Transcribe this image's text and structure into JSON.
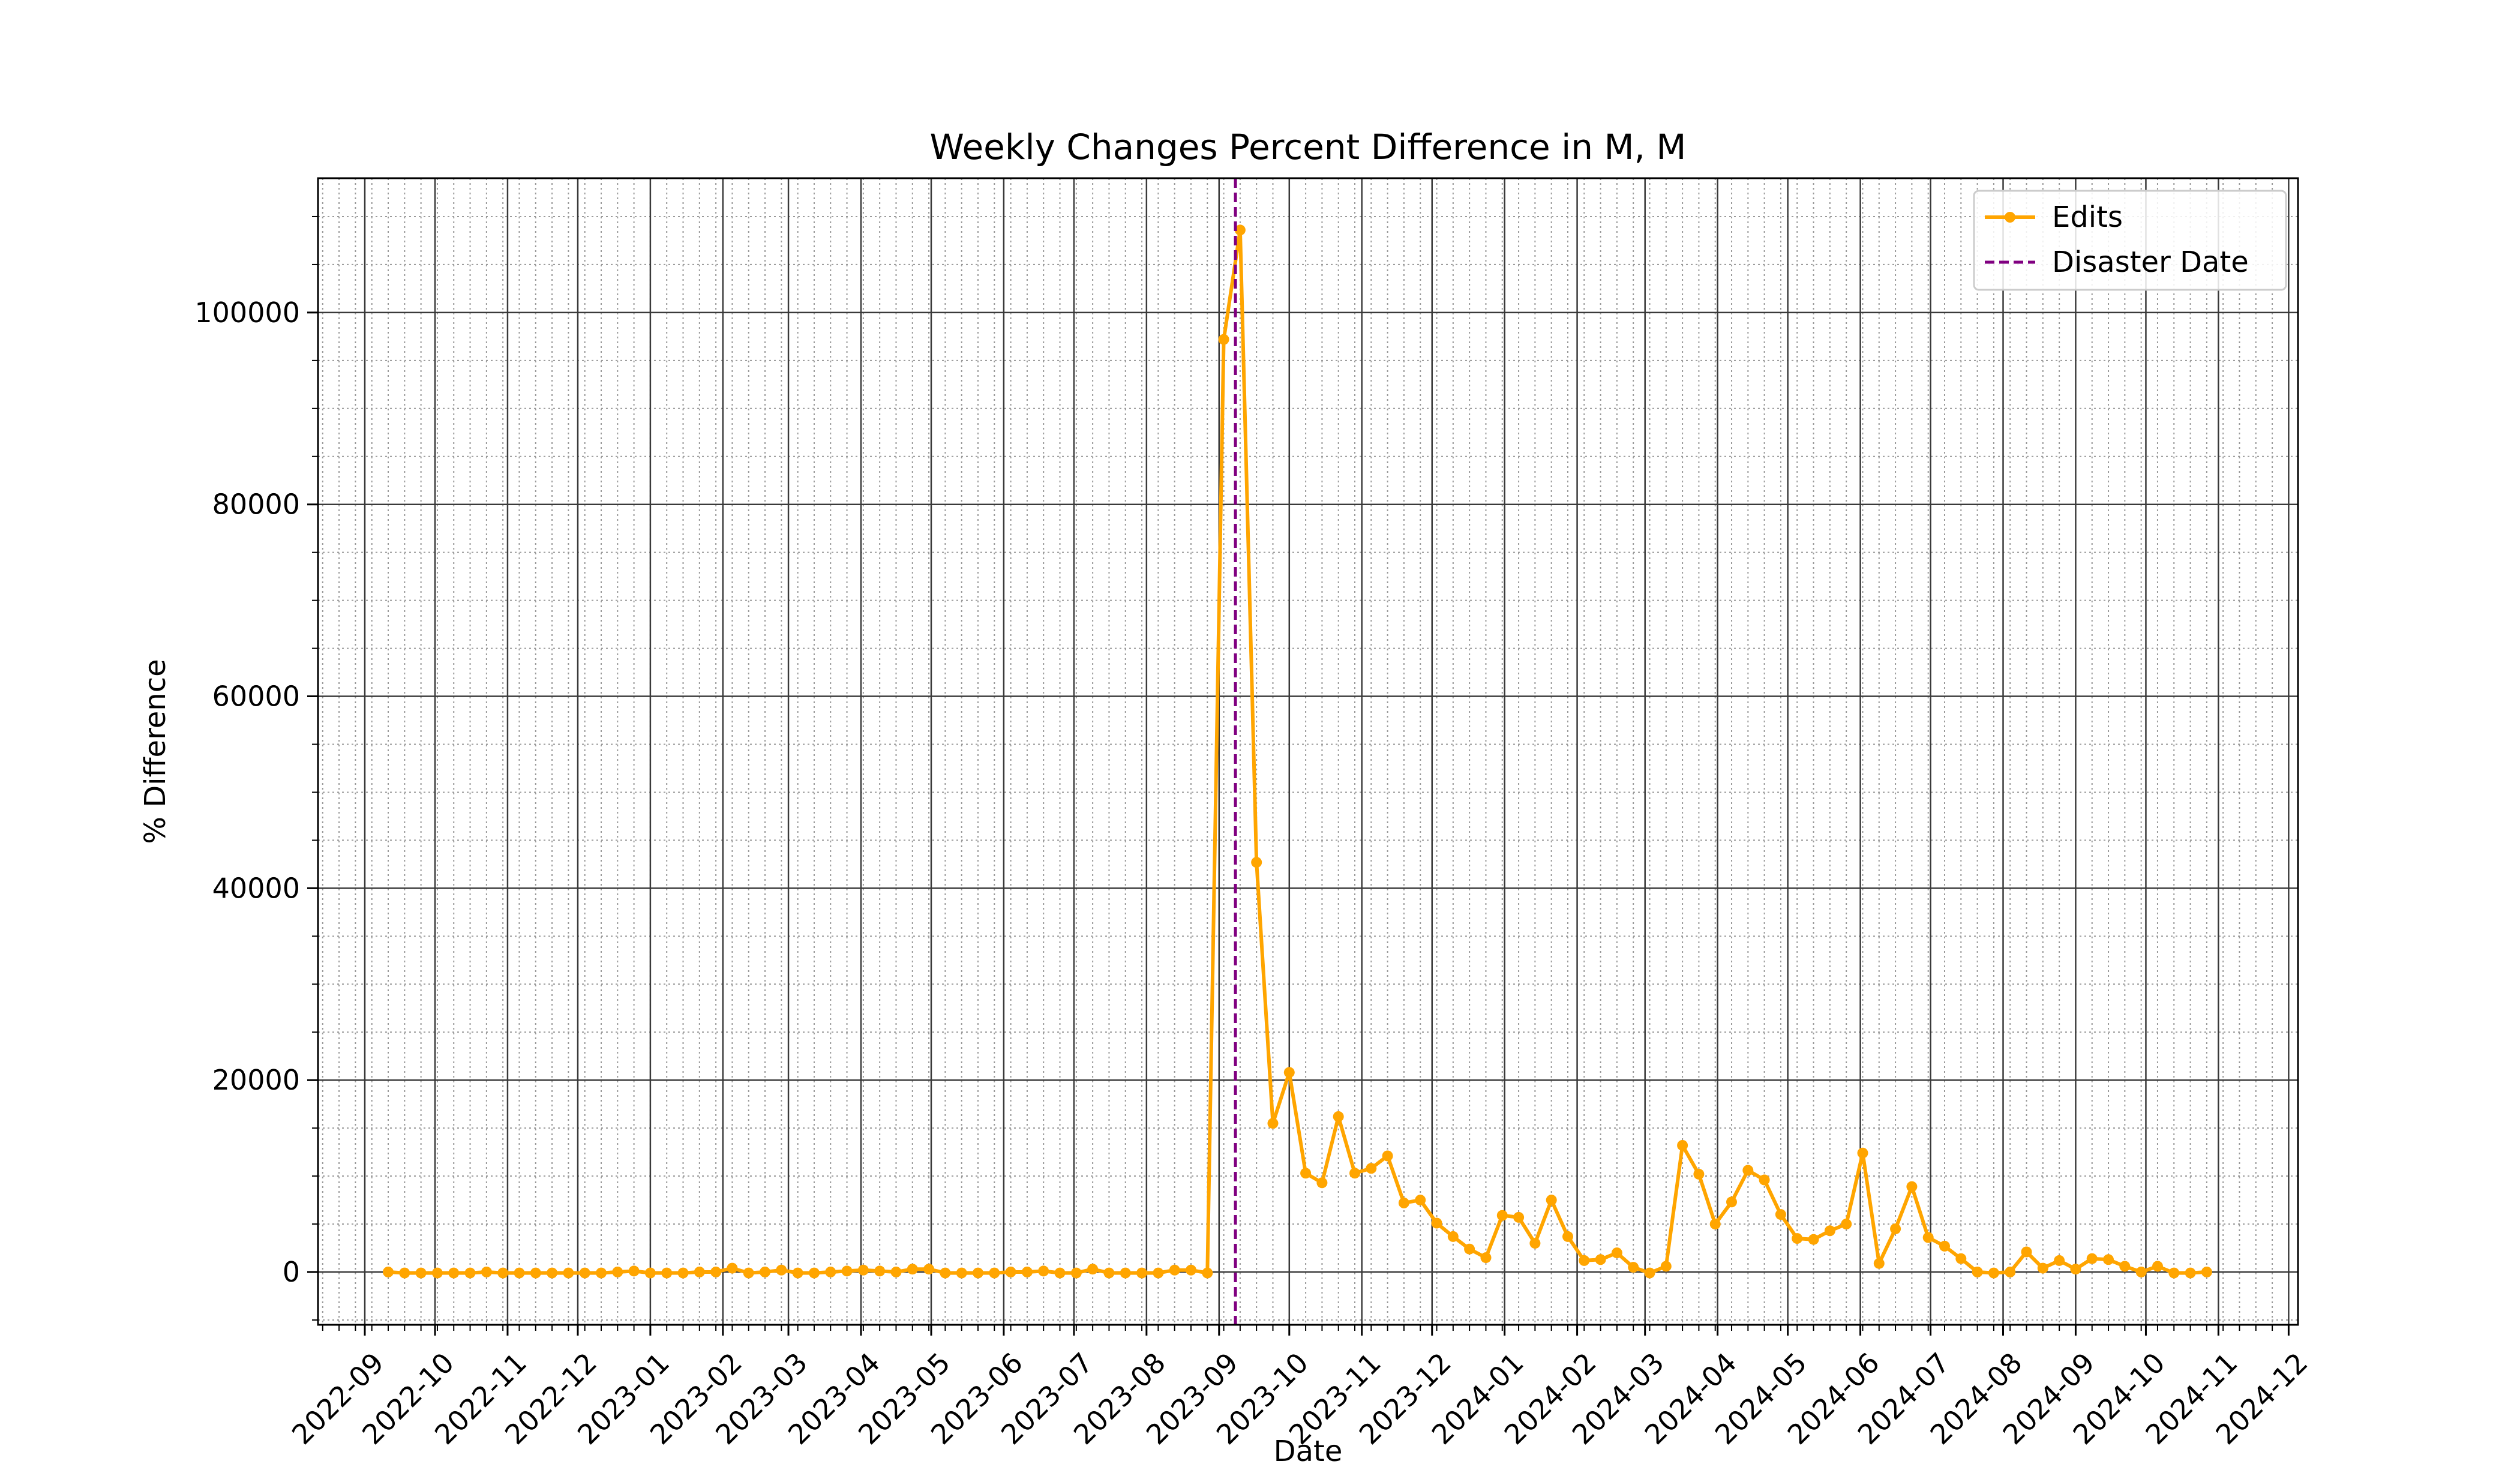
{
  "chart_data": {
    "type": "line",
    "title": "Weekly Changes Percent Difference in M, M",
    "xlabel": "Date",
    "ylabel": "% Difference",
    "ylim": [
      -5500,
      114000
    ],
    "xlim": [
      "2022-08-12",
      "2024-12-05"
    ],
    "yticks": [
      0,
      20000,
      40000,
      60000,
      80000,
      100000
    ],
    "xticks": [
      "2022-09",
      "2022-10",
      "2022-11",
      "2022-12",
      "2023-01",
      "2023-02",
      "2023-03",
      "2023-04",
      "2023-05",
      "2023-06",
      "2023-07",
      "2023-08",
      "2023-09",
      "2023-10",
      "2023-11",
      "2023-12",
      "2024-01",
      "2024-02",
      "2024-03",
      "2024-04",
      "2024-05",
      "2024-06",
      "2024-07",
      "2024-08",
      "2024-09",
      "2024-10",
      "2024-11",
      "2024-12"
    ],
    "grid": "major and minor",
    "legend_position": "top-right",
    "disaster_date": "2023-09-08",
    "series": [
      {
        "name": "Edits",
        "color": "#FFA500",
        "points": [
          [
            "2022-09-11",
            0
          ],
          [
            "2022-09-18",
            -100
          ],
          [
            "2022-09-25",
            -100
          ],
          [
            "2022-10-02",
            -100
          ],
          [
            "2022-10-09",
            -100
          ],
          [
            "2022-10-16",
            -100
          ],
          [
            "2022-10-23",
            0
          ],
          [
            "2022-10-30",
            -100
          ],
          [
            "2022-11-06",
            -100
          ],
          [
            "2022-11-13",
            -100
          ],
          [
            "2022-11-20",
            -100
          ],
          [
            "2022-11-27",
            -100
          ],
          [
            "2022-12-04",
            -100
          ],
          [
            "2022-12-11",
            -100
          ],
          [
            "2022-12-18",
            0
          ],
          [
            "2022-12-25",
            100
          ],
          [
            "2023-01-01",
            -100
          ],
          [
            "2023-01-08",
            -100
          ],
          [
            "2023-01-15",
            -100
          ],
          [
            "2023-01-22",
            0
          ],
          [
            "2023-01-29",
            0
          ],
          [
            "2023-02-05",
            400
          ],
          [
            "2023-02-12",
            -100
          ],
          [
            "2023-02-19",
            0
          ],
          [
            "2023-02-26",
            200
          ],
          [
            "2023-03-05",
            -100
          ],
          [
            "2023-03-12",
            -100
          ],
          [
            "2023-03-19",
            0
          ],
          [
            "2023-03-26",
            100
          ],
          [
            "2023-04-02",
            200
          ],
          [
            "2023-04-09",
            100
          ],
          [
            "2023-04-16",
            0
          ],
          [
            "2023-04-23",
            300
          ],
          [
            "2023-04-30",
            300
          ],
          [
            "2023-05-07",
            -100
          ],
          [
            "2023-05-14",
            -100
          ],
          [
            "2023-05-21",
            -100
          ],
          [
            "2023-05-28",
            -100
          ],
          [
            "2023-06-04",
            0
          ],
          [
            "2023-06-11",
            0
          ],
          [
            "2023-06-18",
            100
          ],
          [
            "2023-06-25",
            -100
          ],
          [
            "2023-07-02",
            -100
          ],
          [
            "2023-07-09",
            300
          ],
          [
            "2023-07-16",
            -100
          ],
          [
            "2023-07-23",
            -100
          ],
          [
            "2023-07-30",
            -100
          ],
          [
            "2023-08-06",
            -100
          ],
          [
            "2023-08-13",
            200
          ],
          [
            "2023-08-20",
            200
          ],
          [
            "2023-08-27",
            -100
          ],
          [
            "2023-09-03",
            97200
          ],
          [
            "2023-09-10",
            108600
          ],
          [
            "2023-09-17",
            42700
          ],
          [
            "2023-09-24",
            15500
          ],
          [
            "2023-10-01",
            20800
          ],
          [
            "2023-10-08",
            10300
          ],
          [
            "2023-10-15",
            9300
          ],
          [
            "2023-10-22",
            16200
          ],
          [
            "2023-10-29",
            10300
          ],
          [
            "2023-11-05",
            10800
          ],
          [
            "2023-11-12",
            12100
          ],
          [
            "2023-11-19",
            7200
          ],
          [
            "2023-11-26",
            7500
          ],
          [
            "2023-12-03",
            5100
          ],
          [
            "2023-12-10",
            3700
          ],
          [
            "2023-12-17",
            2400
          ],
          [
            "2023-12-24",
            1500
          ],
          [
            "2023-12-31",
            5900
          ],
          [
            "2024-01-07",
            5700
          ],
          [
            "2024-01-14",
            3000
          ],
          [
            "2024-01-21",
            7500
          ],
          [
            "2024-01-28",
            3700
          ],
          [
            "2024-02-04",
            1200
          ],
          [
            "2024-02-11",
            1300
          ],
          [
            "2024-02-18",
            2000
          ],
          [
            "2024-02-25",
            500
          ],
          [
            "2024-03-03",
            -100
          ],
          [
            "2024-03-10",
            600
          ],
          [
            "2024-03-17",
            13200
          ],
          [
            "2024-03-24",
            10200
          ],
          [
            "2024-03-31",
            5000
          ],
          [
            "2024-04-07",
            7300
          ],
          [
            "2024-04-14",
            10600
          ],
          [
            "2024-04-21",
            9600
          ],
          [
            "2024-04-28",
            6000
          ],
          [
            "2024-05-05",
            3500
          ],
          [
            "2024-05-12",
            3400
          ],
          [
            "2024-05-19",
            4300
          ],
          [
            "2024-05-26",
            5000
          ],
          [
            "2024-06-02",
            12400
          ],
          [
            "2024-06-09",
            900
          ],
          [
            "2024-06-16",
            4500
          ],
          [
            "2024-06-23",
            8900
          ],
          [
            "2024-06-30",
            3600
          ],
          [
            "2024-07-07",
            2700
          ],
          [
            "2024-07-14",
            1400
          ],
          [
            "2024-07-21",
            0
          ],
          [
            "2024-07-28",
            -100
          ],
          [
            "2024-08-04",
            0
          ],
          [
            "2024-08-11",
            2100
          ],
          [
            "2024-08-18",
            400
          ],
          [
            "2024-08-25",
            1200
          ],
          [
            "2024-09-01",
            300
          ],
          [
            "2024-09-08",
            1400
          ],
          [
            "2024-09-15",
            1300
          ],
          [
            "2024-09-22",
            600
          ],
          [
            "2024-09-29",
            0
          ],
          [
            "2024-10-06",
            600
          ],
          [
            "2024-10-13",
            -100
          ],
          [
            "2024-10-20",
            -100
          ],
          [
            "2024-10-27",
            0
          ]
        ]
      }
    ],
    "reference_lines": [
      {
        "name": "Disaster Date",
        "x": "2023-09-08",
        "color": "#800080",
        "style": "dashed"
      }
    ]
  }
}
